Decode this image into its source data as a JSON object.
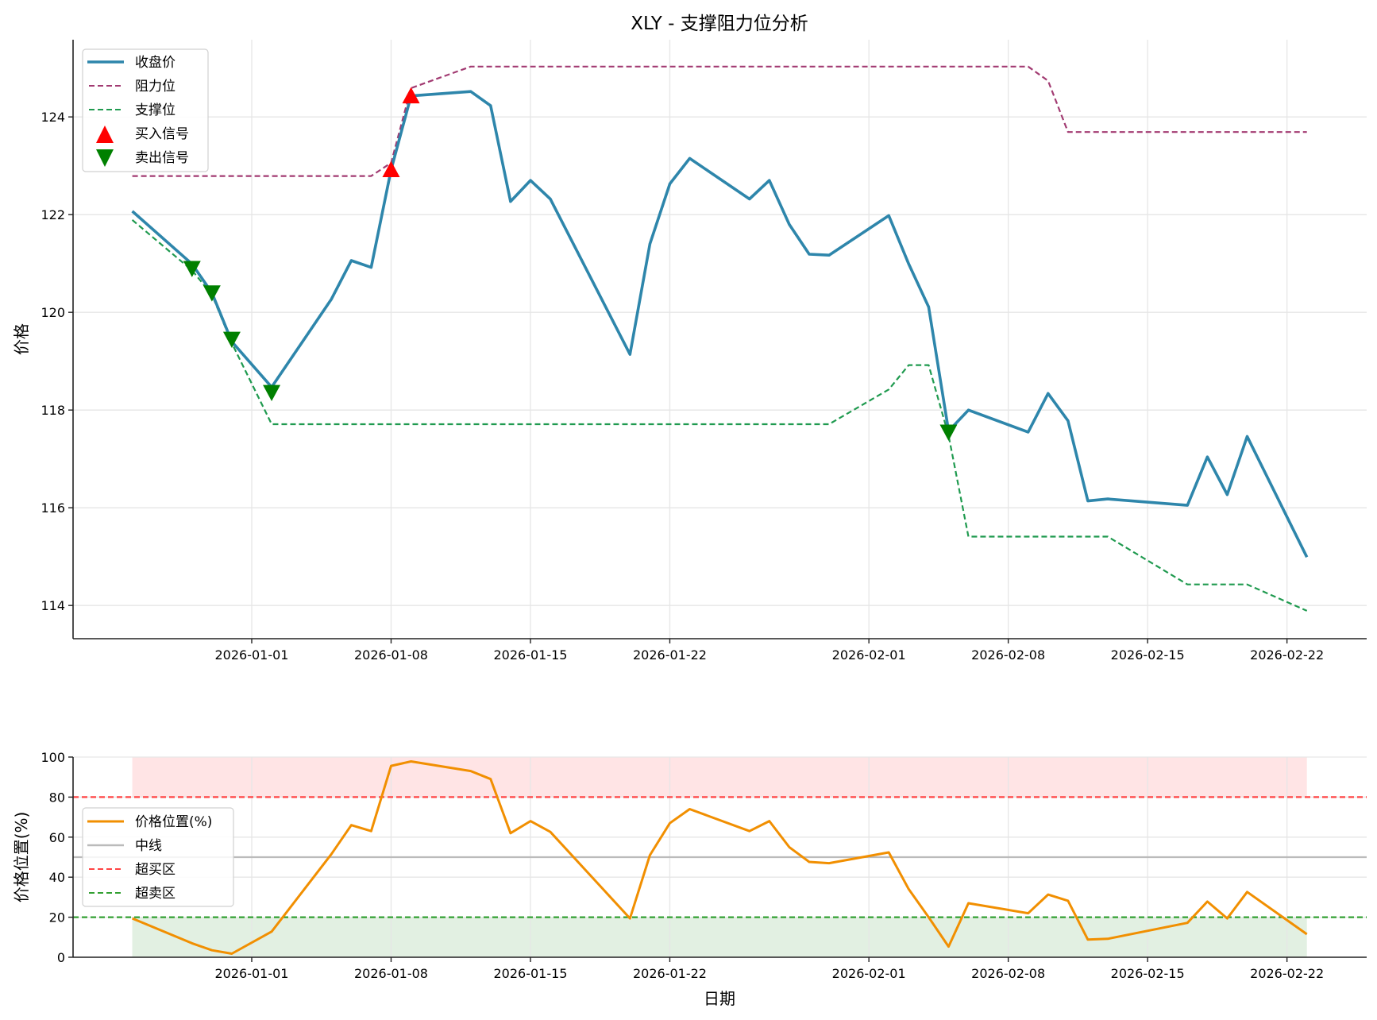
{
  "chart_data": [
    {
      "type": "line",
      "title": "XLY - 支撑阻力位分析",
      "xlabel": "",
      "ylabel": "价格",
      "ylim": [
        113.32,
        125.58
      ],
      "yticks": [
        114,
        116,
        118,
        120,
        122,
        124
      ],
      "xticks": [
        "2026-01-01",
        "2026-01-08",
        "2026-01-15",
        "2026-01-22",
        "2026-02-01",
        "2026-02-08",
        "2026-02-15",
        "2026-02-22"
      ],
      "grid": true,
      "legend_position": "upper left",
      "x": [
        "2025-12-26",
        "2025-12-29",
        "2025-12-30",
        "2025-12-31",
        "2026-01-02",
        "2026-01-05",
        "2026-01-06",
        "2026-01-07",
        "2026-01-08",
        "2026-01-09",
        "2026-01-12",
        "2026-01-13",
        "2026-01-14",
        "2026-01-15",
        "2026-01-16",
        "2026-01-20",
        "2026-01-21",
        "2026-01-22",
        "2026-01-23",
        "2026-01-26",
        "2026-01-27",
        "2026-01-28",
        "2026-01-29",
        "2026-01-30",
        "2026-02-02",
        "2026-02-03",
        "2026-02-04",
        "2026-02-05",
        "2026-02-06",
        "2026-02-09",
        "2026-02-10",
        "2026-02-11",
        "2026-02-12",
        "2026-02-13",
        "2026-02-17",
        "2026-02-18",
        "2026-02-19",
        "2026-02-20",
        "2026-02-23"
      ],
      "series": [
        {
          "name": "收盘价",
          "color": "#2E86AB",
          "style": "solid",
          "values": [
            122.07,
            120.99,
            120.4,
            119.4,
            118.47,
            120.27,
            121.06,
            120.92,
            122.92,
            124.43,
            124.52,
            124.23,
            122.27,
            122.7,
            122.32,
            119.14,
            121.4,
            122.63,
            123.15,
            122.32,
            122.7,
            121.8,
            121.19,
            121.17,
            121.98,
            120.99,
            120.11,
            117.57,
            118.0,
            117.55,
            118.34,
            117.78,
            116.14,
            116.18,
            116.05,
            117.04,
            116.27,
            117.46,
            114.99
          ]
        },
        {
          "name": "阻力位",
          "color": "#A23B72",
          "style": "dashed",
          "values": [
            122.79,
            122.79,
            122.79,
            122.79,
            122.79,
            122.79,
            122.79,
            122.79,
            123.06,
            124.59,
            125.03,
            125.03,
            125.03,
            125.03,
            125.03,
            125.03,
            125.03,
            125.03,
            125.03,
            125.03,
            125.03,
            125.03,
            125.03,
            125.03,
            125.03,
            125.03,
            125.03,
            125.03,
            125.03,
            125.03,
            124.74,
            123.69,
            123.69,
            123.69,
            123.69,
            123.69,
            123.69,
            123.69,
            123.69
          ]
        },
        {
          "name": "支撑位",
          "color": "#1F9A4F",
          "style": "dashed",
          "values": [
            121.89,
            120.86,
            120.36,
            119.37,
            117.71,
            117.71,
            117.71,
            117.71,
            117.71,
            117.71,
            117.71,
            117.71,
            117.71,
            117.71,
            117.71,
            117.71,
            117.71,
            117.71,
            117.71,
            117.71,
            117.71,
            117.71,
            117.71,
            117.71,
            118.42,
            118.92,
            118.92,
            117.48,
            115.41,
            115.41,
            115.41,
            115.41,
            115.41,
            115.41,
            114.43,
            114.43,
            114.43,
            114.43,
            113.89
          ]
        }
      ],
      "markers": [
        {
          "name": "买入信号",
          "color": "#FF0000",
          "shape": "triangle-up",
          "points": [
            {
              "x": "2026-01-08",
              "y": 122.92
            },
            {
              "x": "2026-01-09",
              "y": 124.43
            }
          ]
        },
        {
          "name": "卖出信号",
          "color": "#008000",
          "shape": "triangle-down",
          "points": [
            {
              "x": "2025-12-29",
              "y": 120.9
            },
            {
              "x": "2025-12-30",
              "y": 120.4
            },
            {
              "x": "2025-12-31",
              "y": 119.45
            },
            {
              "x": "2026-01-02",
              "y": 118.36
            },
            {
              "x": "2026-02-05",
              "y": 117.55
            }
          ]
        }
      ]
    },
    {
      "type": "line",
      "title": "",
      "xlabel": "日期",
      "ylabel": "价格位置(%)",
      "ylim": [
        0,
        100
      ],
      "yticks": [
        0,
        20,
        40,
        60,
        80,
        100
      ],
      "xticks": [
        "2026-01-01",
        "2026-01-08",
        "2026-01-15",
        "2026-01-22",
        "2026-02-01",
        "2026-02-08",
        "2026-02-15",
        "2026-02-22"
      ],
      "grid": true,
      "legend_position": "center left",
      "x_ref": "same as chart 1",
      "series": [
        {
          "name": "价格位置(%)",
          "color": "#F18F01",
          "style": "solid",
          "values": [
            19.4,
            7.0,
            3.5,
            1.8,
            12.8,
            51.5,
            66.0,
            63.0,
            95.6,
            97.8,
            93.0,
            89.0,
            62.0,
            68.0,
            62.6,
            19.4,
            51.0,
            67.0,
            74.0,
            63.0,
            68.0,
            55.0,
            47.6,
            47.0,
            52.4,
            34.0,
            20.0,
            5.3,
            27.0,
            22.0,
            31.3,
            28.2,
            8.8,
            9.2,
            17.2,
            27.8,
            19.4,
            32.6,
            11.5
          ]
        },
        {
          "name": "中线",
          "color": "#BBBBBB",
          "style": "solid",
          "y": 50
        },
        {
          "name": "超买区",
          "color": "#FF4444",
          "style": "dashed",
          "y": 80
        },
        {
          "name": "超卖区",
          "color": "#33A033",
          "style": "dashed",
          "y": 20
        }
      ],
      "bands": [
        {
          "from": 80,
          "to": 100,
          "color": "#FFC9CC"
        },
        {
          "from": 0,
          "to": 20,
          "color": "#C6E2C6"
        }
      ]
    }
  ],
  "top_chart": {
    "title": "XLY - 支撑阻力位分析",
    "ylabel": "价格",
    "legend": [
      "收盘价",
      "阻力位",
      "支撑位",
      "买入信号",
      "卖出信号"
    ]
  },
  "bottom_chart": {
    "xlabel": "日期",
    "ylabel": "价格位置(%)",
    "legend": [
      "价格位置(%)",
      "中线",
      "超买区",
      "超卖区"
    ]
  }
}
